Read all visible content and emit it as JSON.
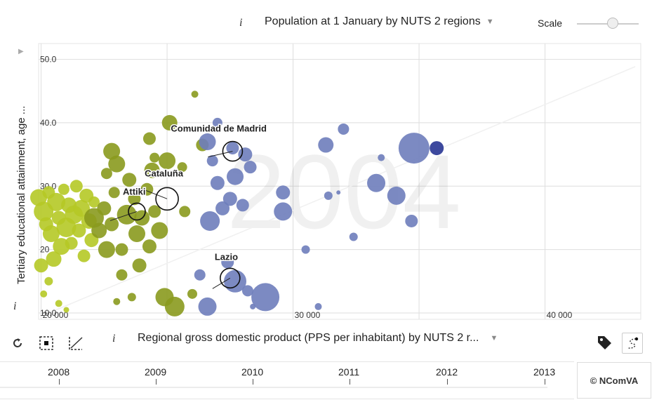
{
  "topbar": {
    "size_info_icon": "info-i-icon",
    "size_info_glyph": "i",
    "size_selector_label": "Population at 1 January by NUTS 2 regions",
    "scale_label": "Scale"
  },
  "y_selector": {
    "info_glyph": "i",
    "label": "Tertiary educational attainment, age ..."
  },
  "x_selector": {
    "info_glyph": "i",
    "label": "Regional gross domestic product (PPS per inhabitant) by NUTS 2 r..."
  },
  "toolbar": {
    "reset_icon": "reset-icon",
    "select_icon": "select-box-icon",
    "trend_icon": "trend-line-icon",
    "tag_icon": "tag-icon",
    "trail_icon": "trail-icon"
  },
  "timeline": {
    "years": [
      "2008",
      "2009",
      "2010",
      "2011",
      "2012",
      "2013"
    ]
  },
  "credit": "© NComVA",
  "colors": {
    "low": "#b5c926",
    "mid": "#8a9a1e",
    "high": "#6e7dbb",
    "top": "#283593"
  },
  "chart_data": {
    "type": "scatter",
    "watermark": "2004",
    "xlabel": "Regional gross domestic product (PPS per inhabitant) by NUTS 2 r...",
    "ylabel": "Tertiary educational attainment, age ...",
    "size_label": "Population at 1 January by NUTS 2 regions",
    "x_ticks": [
      "20 000",
      "30 000",
      "40 000"
    ],
    "y_ticks": [
      "10.0",
      "20",
      "30.0",
      "40.0",
      "50.0"
    ],
    "xlim": [
      19900,
      43800
    ],
    "ylim": [
      9,
      52.5
    ],
    "grid": true,
    "highlighted": [
      {
        "label": "Comunidad de Madrid",
        "x": 27600,
        "y": 35.5,
        "size": 14
      },
      {
        "label": "Cataluña",
        "x": 25000,
        "y": 28.0,
        "size": 16
      },
      {
        "label": "Attiki",
        "x": 23800,
        "y": 26.0,
        "size": 12
      },
      {
        "label": "Lazio",
        "x": 27500,
        "y": 15.5,
        "size": 14
      }
    ],
    "points": [
      {
        "x": 19900,
        "y": 28.2,
        "s": 12,
        "c": "low"
      },
      {
        "x": 20100,
        "y": 26.0,
        "s": 14,
        "c": "low"
      },
      {
        "x": 20200,
        "y": 24.0,
        "s": 10,
        "c": "low"
      },
      {
        "x": 20300,
        "y": 29.0,
        "s": 9,
        "c": "low"
      },
      {
        "x": 20400,
        "y": 22.5,
        "s": 12,
        "c": "low"
      },
      {
        "x": 20500,
        "y": 18.5,
        "s": 11,
        "c": "low"
      },
      {
        "x": 20600,
        "y": 27.5,
        "s": 13,
        "c": "low"
      },
      {
        "x": 20700,
        "y": 25.0,
        "s": 10,
        "c": "low"
      },
      {
        "x": 20800,
        "y": 20.5,
        "s": 12,
        "c": "low"
      },
      {
        "x": 20900,
        "y": 29.5,
        "s": 8,
        "c": "low"
      },
      {
        "x": 21000,
        "y": 23.5,
        "s": 14,
        "c": "low"
      },
      {
        "x": 21100,
        "y": 27.0,
        "s": 11,
        "c": "low"
      },
      {
        "x": 21200,
        "y": 21.0,
        "s": 9,
        "c": "low"
      },
      {
        "x": 21300,
        "y": 25.5,
        "s": 13,
        "c": "low"
      },
      {
        "x": 21400,
        "y": 30.0,
        "s": 9,
        "c": "low"
      },
      {
        "x": 21500,
        "y": 23.0,
        "s": 10,
        "c": "low"
      },
      {
        "x": 21600,
        "y": 26.5,
        "s": 12,
        "c": "low"
      },
      {
        "x": 21700,
        "y": 19.0,
        "s": 9,
        "c": "low"
      },
      {
        "x": 21800,
        "y": 28.5,
        "s": 10,
        "c": "low"
      },
      {
        "x": 21900,
        "y": 24.5,
        "s": 11,
        "c": "low"
      },
      {
        "x": 22000,
        "y": 21.5,
        "s": 10,
        "c": "low"
      },
      {
        "x": 22100,
        "y": 27.5,
        "s": 8,
        "c": "low"
      },
      {
        "x": 20000,
        "y": 17.5,
        "s": 10,
        "c": "low"
      },
      {
        "x": 20300,
        "y": 15.0,
        "s": 6,
        "c": "low"
      },
      {
        "x": 20100,
        "y": 13.0,
        "s": 5,
        "c": "low"
      },
      {
        "x": 20700,
        "y": 11.5,
        "s": 5,
        "c": "low"
      },
      {
        "x": 21000,
        "y": 10.5,
        "s": 4,
        "c": "low"
      },
      {
        "x": 22100,
        "y": 25.0,
        "s": 14,
        "c": "mid"
      },
      {
        "x": 22300,
        "y": 23.0,
        "s": 11,
        "c": "mid"
      },
      {
        "x": 22500,
        "y": 26.5,
        "s": 10,
        "c": "mid"
      },
      {
        "x": 22600,
        "y": 20.0,
        "s": 12,
        "c": "mid"
      },
      {
        "x": 22800,
        "y": 24.0,
        "s": 10,
        "c": "mid"
      },
      {
        "x": 22900,
        "y": 29.0,
        "s": 8,
        "c": "mid"
      },
      {
        "x": 23000,
        "y": 33.5,
        "s": 12,
        "c": "mid"
      },
      {
        "x": 22800,
        "y": 35.5,
        "s": 12,
        "c": "mid"
      },
      {
        "x": 22600,
        "y": 32.0,
        "s": 8,
        "c": "mid"
      },
      {
        "x": 23200,
        "y": 20.0,
        "s": 9,
        "c": "mid"
      },
      {
        "x": 23400,
        "y": 25.5,
        "s": 14,
        "c": "mid"
      },
      {
        "x": 23500,
        "y": 31.0,
        "s": 10,
        "c": "mid"
      },
      {
        "x": 23700,
        "y": 28.0,
        "s": 9,
        "c": "mid"
      },
      {
        "x": 23800,
        "y": 22.5,
        "s": 12,
        "c": "mid"
      },
      {
        "x": 23900,
        "y": 17.5,
        "s": 10,
        "c": "mid"
      },
      {
        "x": 24000,
        "y": 25.0,
        "s": 11,
        "c": "mid"
      },
      {
        "x": 24200,
        "y": 29.5,
        "s": 9,
        "c": "mid"
      },
      {
        "x": 24300,
        "y": 20.5,
        "s": 10,
        "c": "mid"
      },
      {
        "x": 24400,
        "y": 32.5,
        "s": 11,
        "c": "mid"
      },
      {
        "x": 24500,
        "y": 26.0,
        "s": 9,
        "c": "mid"
      },
      {
        "x": 24700,
        "y": 23.0,
        "s": 12,
        "c": "mid"
      },
      {
        "x": 24900,
        "y": 12.5,
        "s": 13,
        "c": "mid"
      },
      {
        "x": 25000,
        "y": 34.0,
        "s": 12,
        "c": "mid"
      },
      {
        "x": 24300,
        "y": 37.5,
        "s": 9,
        "c": "mid"
      },
      {
        "x": 24500,
        "y": 34.5,
        "s": 7,
        "c": "mid"
      },
      {
        "x": 23200,
        "y": 16.0,
        "s": 8,
        "c": "mid"
      },
      {
        "x": 25600,
        "y": 33.0,
        "s": 7,
        "c": "mid"
      },
      {
        "x": 23000,
        "y": 11.8,
        "s": 5,
        "c": "mid"
      },
      {
        "x": 23600,
        "y": 12.5,
        "s": 6,
        "c": "mid"
      },
      {
        "x": 25100,
        "y": 40.0,
        "s": 11,
        "c": "mid"
      },
      {
        "x": 26000,
        "y": 13.0,
        "s": 7,
        "c": "mid"
      },
      {
        "x": 26100,
        "y": 44.5,
        "s": 5,
        "c": "mid"
      },
      {
        "x": 26400,
        "y": 36.5,
        "s": 9,
        "c": "mid"
      },
      {
        "x": 25300,
        "y": 11.0,
        "s": 14,
        "c": "mid"
      },
      {
        "x": 25700,
        "y": 26.0,
        "s": 8,
        "c": "mid"
      },
      {
        "x": 27000,
        "y": 40.0,
        "s": 7,
        "c": "high"
      },
      {
        "x": 26600,
        "y": 37.0,
        "s": 12,
        "c": "high"
      },
      {
        "x": 26800,
        "y": 34.0,
        "s": 8,
        "c": "high"
      },
      {
        "x": 27000,
        "y": 30.5,
        "s": 10,
        "c": "high"
      },
      {
        "x": 27200,
        "y": 26.5,
        "s": 10,
        "c": "high"
      },
      {
        "x": 26700,
        "y": 24.5,
        "s": 14,
        "c": "high"
      },
      {
        "x": 27500,
        "y": 28.0,
        "s": 10,
        "c": "high"
      },
      {
        "x": 27700,
        "y": 31.5,
        "s": 12,
        "c": "high"
      },
      {
        "x": 28000,
        "y": 27.0,
        "s": 9,
        "c": "high"
      },
      {
        "x": 27600,
        "y": 36.0,
        "s": 9,
        "c": "high"
      },
      {
        "x": 28100,
        "y": 35.0,
        "s": 10,
        "c": "high"
      },
      {
        "x": 28300,
        "y": 33.0,
        "s": 9,
        "c": "high"
      },
      {
        "x": 26300,
        "y": 16.0,
        "s": 8,
        "c": "high"
      },
      {
        "x": 27400,
        "y": 18.0,
        "s": 9,
        "c": "high"
      },
      {
        "x": 27700,
        "y": 15.0,
        "s": 16,
        "c": "high"
      },
      {
        "x": 28200,
        "y": 13.5,
        "s": 8,
        "c": "high"
      },
      {
        "x": 26600,
        "y": 11.0,
        "s": 13,
        "c": "high"
      },
      {
        "x": 28400,
        "y": 11.0,
        "s": 4,
        "c": "high"
      },
      {
        "x": 28900,
        "y": 12.5,
        "s": 20,
        "c": "high"
      },
      {
        "x": 29600,
        "y": 29.0,
        "s": 10,
        "c": "high"
      },
      {
        "x": 29600,
        "y": 26.0,
        "s": 13,
        "c": "high"
      },
      {
        "x": 30500,
        "y": 20.0,
        "s": 6,
        "c": "high"
      },
      {
        "x": 31000,
        "y": 11.0,
        "s": 5,
        "c": "high"
      },
      {
        "x": 31300,
        "y": 36.5,
        "s": 11,
        "c": "high"
      },
      {
        "x": 31400,
        "y": 28.5,
        "s": 6,
        "c": "high"
      },
      {
        "x": 31800,
        "y": 29.0,
        "s": 3,
        "c": "high"
      },
      {
        "x": 32000,
        "y": 39.0,
        "s": 8,
        "c": "high"
      },
      {
        "x": 32400,
        "y": 22.0,
        "s": 6,
        "c": "high"
      },
      {
        "x": 33300,
        "y": 30.5,
        "s": 13,
        "c": "high"
      },
      {
        "x": 33500,
        "y": 34.5,
        "s": 5,
        "c": "high"
      },
      {
        "x": 34100,
        "y": 28.5,
        "s": 13,
        "c": "high"
      },
      {
        "x": 34700,
        "y": 24.5,
        "s": 9,
        "c": "high"
      },
      {
        "x": 34800,
        "y": 36.0,
        "s": 22,
        "c": "high"
      },
      {
        "x": 35700,
        "y": 36.0,
        "s": 10,
        "c": "top"
      }
    ]
  }
}
